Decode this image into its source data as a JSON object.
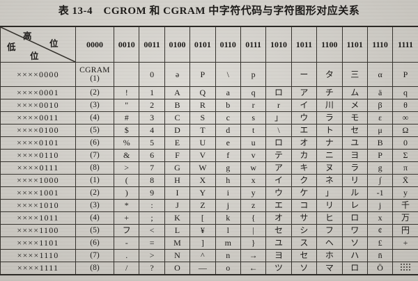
{
  "title": "表 13-4　CGROM 和 CGRAM 中字符代码与字符图形对应关系",
  "colors": {
    "paper": "#d1cec7",
    "ink": "#1c1a18",
    "line": "#35322d"
  },
  "table": {
    "corner": {
      "high_label": "高",
      "high_unit": "位",
      "low_label": "低",
      "low_unit": "位"
    },
    "columns": [
      "0000",
      "0010",
      "0011",
      "0100",
      "0101",
      "0110",
      "0111",
      "1010",
      "1011",
      "1100",
      "1101",
      "1110",
      "1111"
    ],
    "cgram_header": "CGRAM",
    "rows": [
      {
        "label": "××××0000",
        "cgram": "(1)",
        "cells": [
          "",
          "0",
          "ə",
          "P",
          "\\",
          "p",
          "",
          "ー",
          "タ",
          "三",
          "α",
          "P"
        ]
      },
      {
        "label": "××××0001",
        "cgram": "(2)",
        "cells": [
          "!",
          "1",
          "A",
          "Q",
          "a",
          "q",
          "ロ",
          "ア",
          "チ",
          "ム",
          "ä",
          "q"
        ]
      },
      {
        "label": "××××0010",
        "cgram": "(3)",
        "cells": [
          "\"",
          "2",
          "B",
          "R",
          "b",
          "r",
          "r",
          "イ",
          "川",
          "メ",
          "β",
          "θ"
        ]
      },
      {
        "label": "××××0011",
        "cgram": "(4)",
        "cells": [
          "#",
          "3",
          "C",
          "S",
          "c",
          "s",
          "」",
          "ウ",
          "ラ",
          "モ",
          "ε",
          "∞"
        ]
      },
      {
        "label": "××××0100",
        "cgram": "(5)",
        "cells": [
          "$",
          "4",
          "D",
          "T",
          "d",
          "t",
          "\\",
          "エ",
          "ト",
          "セ",
          "μ",
          "Ω"
        ]
      },
      {
        "label": "××××0101",
        "cgram": "(6)",
        "cells": [
          "%",
          "5",
          "E",
          "U",
          "e",
          "u",
          "ロ",
          "オ",
          "ナ",
          "ユ",
          "B",
          "0"
        ]
      },
      {
        "label": "××××0110",
        "cgram": "(7)",
        "cells": [
          "&",
          "6",
          "F",
          "V",
          "f",
          "v",
          "テ",
          "カ",
          "ニ",
          "ヨ",
          "P",
          "Σ"
        ]
      },
      {
        "label": "××××0111",
        "cgram": "(8)",
        "cells": [
          ">",
          "7",
          "G",
          "W",
          "g",
          "w",
          "ア",
          "キ",
          "ヌ",
          "ラ",
          "g",
          "π"
        ]
      },
      {
        "label": "××××1000",
        "cgram": "(1)",
        "cells": [
          "(",
          "8",
          "H",
          "X",
          "h",
          "x",
          "イ",
          "ク",
          "ネ",
          "リ",
          "∫",
          "X̄"
        ]
      },
      {
        "label": "××××1001",
        "cgram": "(2)",
        "cells": [
          ")",
          "9",
          "I",
          "Y",
          "i",
          "y",
          "ウ",
          "ケ",
          "」",
          "ル",
          "-1",
          "y"
        ]
      },
      {
        "label": "××××1010",
        "cgram": "(3)",
        "cells": [
          "*",
          ":",
          "J",
          "Z",
          "j",
          "z",
          "エ",
          "コ",
          "リ",
          "レ",
          "j",
          "千"
        ]
      },
      {
        "label": "××××1011",
        "cgram": "(4)",
        "cells": [
          "+",
          ";",
          "K",
          "[",
          "k",
          "{",
          "オ",
          "サ",
          "ヒ",
          "ロ",
          "x",
          "万"
        ]
      },
      {
        "label": "××××1100",
        "cgram": "(5)",
        "cells": [
          "フ",
          "<",
          "L",
          "¥",
          "l",
          "|",
          "セ",
          "シ",
          "フ",
          "ワ",
          "¢",
          "円"
        ]
      },
      {
        "label": "××××1101",
        "cgram": "(6)",
        "cells": [
          "-",
          "=",
          "M",
          "]",
          "m",
          "}",
          "ユ",
          "ス",
          "ヘ",
          "ソ",
          "£",
          "+"
        ]
      },
      {
        "label": "××××1110",
        "cgram": "(7)",
        "cells": [
          ".",
          ">",
          "N",
          "^",
          "n",
          "→",
          "ヨ",
          "セ",
          "ホ",
          "ハ",
          "n̄",
          ""
        ]
      },
      {
        "label": "××××1111",
        "cgram": "(8)",
        "cells": [
          "/",
          "?",
          "O",
          "—",
          "o",
          "←",
          "ツ",
          "ソ",
          "マ",
          "ロ",
          "Ö",
          "▒"
        ]
      }
    ]
  }
}
